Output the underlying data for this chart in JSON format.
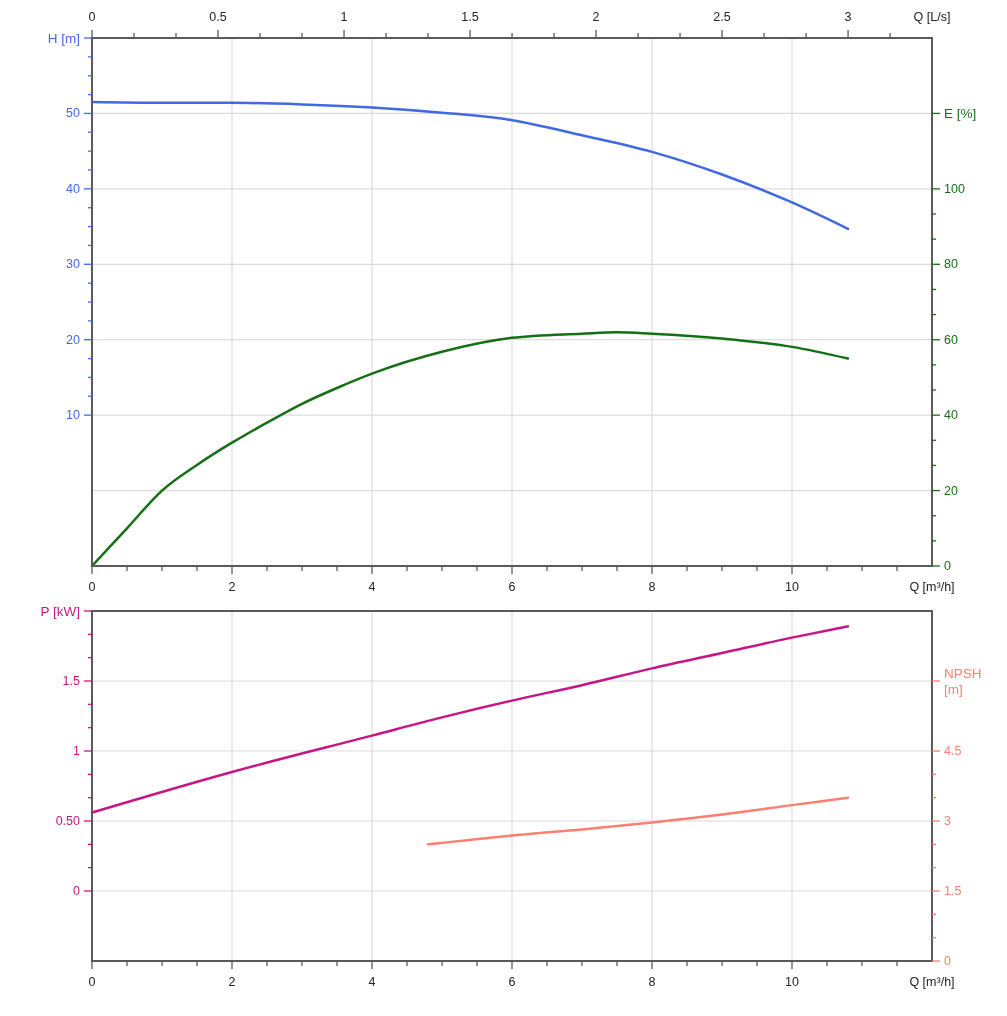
{
  "chart_data": [
    {
      "type": "line",
      "xlabel": "Q [m³/h]",
      "x2label": "Q [L/s]",
      "ylabel": "H [m]",
      "y2label": "E [%]",
      "xlim": [
        0,
        12
      ],
      "xticks": [
        0,
        {
          "value": 0.5,
          "label": null
        },
        {
          "value": 1,
          "label": null
        },
        {
          "value": 1.5,
          "label": null
        },
        2,
        {
          "value": 2.5,
          "label": null
        },
        {
          "value": 3,
          "label": null
        },
        {
          "value": 3.5,
          "label": null
        },
        4,
        {
          "value": 4.5,
          "label": null
        },
        {
          "value": 5,
          "label": null
        },
        {
          "value": 5.5,
          "label": null
        },
        6,
        {
          "value": 6.5,
          "label": null
        },
        {
          "value": 7,
          "label": null
        },
        {
          "value": 7.5,
          "label": null
        },
        8,
        {
          "value": 8.5,
          "label": null
        },
        {
          "value": 9,
          "label": null
        },
        {
          "value": 9.5,
          "label": null
        },
        10,
        {
          "value": 10.5,
          "label": null
        },
        {
          "value": 11,
          "label": null
        },
        {
          "value": 11.5,
          "label": null
        }
      ],
      "x2lim": [
        0,
        3.333
      ],
      "x2ticks": [
        0,
        {
          "value": 0.1667,
          "label": null
        },
        {
          "value": 0.3333,
          "label": null
        },
        0.5,
        {
          "value": 0.6667,
          "label": null
        },
        {
          "value": 0.8333,
          "label": null
        },
        1,
        {
          "value": 1.1667,
          "label": null
        },
        {
          "value": 1.3333,
          "label": null
        },
        1.5,
        {
          "value": 1.6667,
          "label": null
        },
        {
          "value": 1.8333,
          "label": null
        },
        2,
        {
          "value": 2.1667,
          "label": null
        },
        {
          "value": 2.3333,
          "label": null
        },
        2.5,
        {
          "value": 2.6667,
          "label": null
        },
        {
          "value": 2.8333,
          "label": null
        },
        3,
        {
          "value": 3.1667,
          "label": null
        }
      ],
      "ylim": [
        -10,
        60
      ],
      "yticks": [
        10,
        {
          "value": 12.5,
          "label": null
        },
        {
          "value": 15,
          "label": null
        },
        {
          "value": 17.5,
          "label": null
        },
        20,
        {
          "value": 22.5,
          "label": null
        },
        {
          "value": 25,
          "label": null
        },
        {
          "value": 27.5,
          "label": null
        },
        30,
        {
          "value": 32.5,
          "label": null
        },
        {
          "value": 35,
          "label": null
        },
        {
          "value": 37.5,
          "label": null
        },
        40,
        {
          "value": 42.5,
          "label": null
        },
        {
          "value": 45,
          "label": null
        },
        {
          "value": 47.5,
          "label": null
        },
        50,
        {
          "value": 52.5,
          "label": null
        },
        {
          "value": 55,
          "label": null
        },
        {
          "value": 57.5,
          "label": null
        }
      ],
      "y2lim": [
        0,
        140
      ],
      "y2ticks": [
        0,
        {
          "value": 6.67,
          "label": null
        },
        {
          "value": 13.33,
          "label": null
        },
        20,
        {
          "value": 26.67,
          "label": null
        },
        {
          "value": 33.33,
          "label": null
        },
        40,
        {
          "value": 46.67,
          "label": null
        },
        {
          "value": 53.33,
          "label": null
        },
        60,
        {
          "value": 66.67,
          "label": null
        },
        {
          "value": 73.33,
          "label": null
        },
        80,
        {
          "value": 86.67,
          "label": null
        },
        {
          "value": 93.33,
          "label": null
        },
        100
      ],
      "grid": true,
      "series": [
        {
          "color": "#4169e1",
          "x": [
            0,
            1,
            2,
            3,
            4,
            5,
            6,
            7,
            8,
            9,
            10,
            10.8
          ],
          "values": [
            51.5,
            51.4,
            51.4,
            51.2,
            50.8,
            50.1,
            49.1,
            47.1,
            44.9,
            41.9,
            38.2,
            34.7
          ]
        },
        {
          "color": "#157015",
          "axis": "y2",
          "x": [
            0,
            0.5,
            1,
            1.5,
            2,
            2.5,
            3,
            3.5,
            4,
            5,
            6,
            7,
            7.5,
            8,
            9,
            10,
            10.8
          ],
          "values": [
            0,
            10,
            20,
            26.8,
            32.7,
            38,
            43,
            47.2,
            51,
            56.8,
            60.5,
            61.6,
            62,
            61.6,
            60.3,
            58.1,
            55
          ]
        }
      ]
    },
    {
      "type": "line",
      "xlabel": "Q [m³/h]",
      "ylabel": "P [kW]",
      "y2label": "NPSH [m]",
      "xlim": [
        0,
        12
      ],
      "xticks": [
        0,
        {
          "value": 0.5,
          "label": null
        },
        {
          "value": 1,
          "label": null
        },
        {
          "value": 1.5,
          "label": null
        },
        2,
        {
          "value": 2.5,
          "label": null
        },
        {
          "value": 3,
          "label": null
        },
        {
          "value": 3.5,
          "label": null
        },
        4,
        {
          "value": 4.5,
          "label": null
        },
        {
          "value": 5,
          "label": null
        },
        {
          "value": 5.5,
          "label": null
        },
        6,
        {
          "value": 6.5,
          "label": null
        },
        {
          "value": 7,
          "label": null
        },
        {
          "value": 7.5,
          "label": null
        },
        8,
        {
          "value": 8.5,
          "label": null
        },
        {
          "value": 9,
          "label": null
        },
        {
          "value": 9.5,
          "label": null
        },
        10,
        {
          "value": 10.5,
          "label": null
        },
        {
          "value": 11,
          "label": null
        },
        {
          "value": 11.5,
          "label": null
        }
      ],
      "ylim": [
        -0.5,
        2
      ],
      "yticks": [
        0,
        {
          "value": 0.1667,
          "label": null
        },
        {
          "value": 0.3333,
          "label": null
        },
        {
          "value": 0.5,
          "label": "0.50"
        },
        {
          "value": 0.6667,
          "label": null
        },
        {
          "value": 0.8333,
          "label": null
        },
        1,
        {
          "value": 1.1667,
          "label": null
        },
        {
          "value": 1.3333,
          "label": null
        },
        1.5,
        {
          "value": 1.6667,
          "label": null
        },
        {
          "value": 1.8333,
          "label": null
        }
      ],
      "y2lim": [
        0,
        7.5
      ],
      "y2ticks": [
        0,
        {
          "value": 0.5,
          "label": null
        },
        {
          "value": 1,
          "label": null
        },
        1.5,
        {
          "value": 2,
          "label": null
        },
        {
          "value": 2.5,
          "label": null
        },
        3,
        {
          "value": 3.5,
          "label": null
        },
        {
          "value": 4,
          "label": null
        },
        4.5
      ],
      "grid": true,
      "series": [
        {
          "color": "#c71585",
          "x": [
            0,
            2,
            4,
            5,
            6,
            7,
            8,
            9,
            10,
            10.8
          ],
          "values": [
            0.56,
            0.85,
            1.11,
            1.24,
            1.36,
            1.47,
            1.59,
            1.7,
            1.81,
            1.89
          ]
        },
        {
          "color": "#fa8072",
          "axis": "y2",
          "x": [
            4.8,
            6,
            7,
            8,
            9,
            10,
            10.8
          ],
          "values": [
            2.5,
            2.69,
            2.82,
            2.97,
            3.14,
            3.34,
            3.5
          ]
        }
      ]
    }
  ]
}
